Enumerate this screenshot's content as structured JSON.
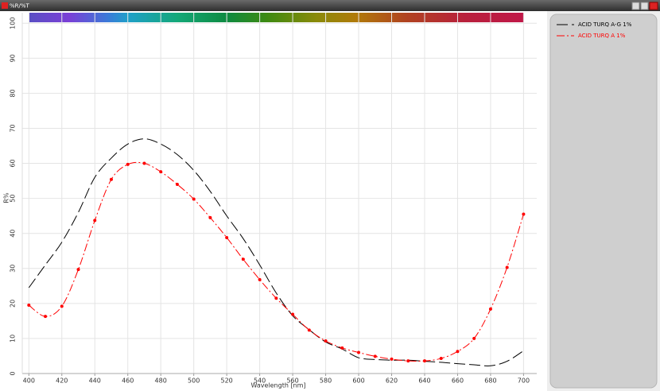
{
  "window_title": "%R/%T",
  "chart_data": {
    "type": "line",
    "x_label": "Wavelength [nm]",
    "y_label": "R%",
    "x": [
      400,
      410,
      420,
      430,
      440,
      450,
      460,
      470,
      480,
      490,
      500,
      510,
      520,
      530,
      540,
      550,
      560,
      570,
      580,
      590,
      600,
      610,
      620,
      630,
      640,
      650,
      660,
      670,
      680,
      690,
      700
    ],
    "series": [
      {
        "name": "ACID TURQ A-G 1%",
        "color": "#000000",
        "markers": false,
        "values": [
          24.5,
          31,
          37.5,
          46,
          56,
          61.5,
          65.5,
          67,
          65.5,
          62.5,
          58,
          52,
          45,
          38.5,
          31,
          23,
          16.5,
          12.5,
          9,
          7,
          4.5,
          4,
          3.8,
          3.8,
          3.5,
          3.2,
          2.8,
          2.5,
          2.2,
          3.5,
          6.5
        ]
      },
      {
        "name": "ACID TURQ A 1%",
        "color": "#ff0000",
        "markers": true,
        "values": [
          19.5,
          16.3,
          19.2,
          29.7,
          43.7,
          55.4,
          59.7,
          60,
          57.6,
          54,
          49.8,
          44.5,
          38.8,
          32.6,
          26.8,
          21.5,
          16.9,
          12.4,
          9.3,
          7.3,
          6,
          4.9,
          4.1,
          3.6,
          3.6,
          4.3,
          6.3,
          10,
          18.4,
          30.3,
          45.5
        ]
      }
    ],
    "xlim": [
      396,
      708
    ],
    "ylim": [
      0,
      103
    ],
    "xticks": [
      400,
      420,
      440,
      460,
      480,
      500,
      520,
      540,
      560,
      580,
      600,
      620,
      640,
      660,
      680,
      700
    ],
    "yticks": [
      0,
      10,
      20,
      30,
      40,
      50,
      60,
      70,
      80,
      90,
      100
    ],
    "grid": true,
    "legend": "right"
  }
}
